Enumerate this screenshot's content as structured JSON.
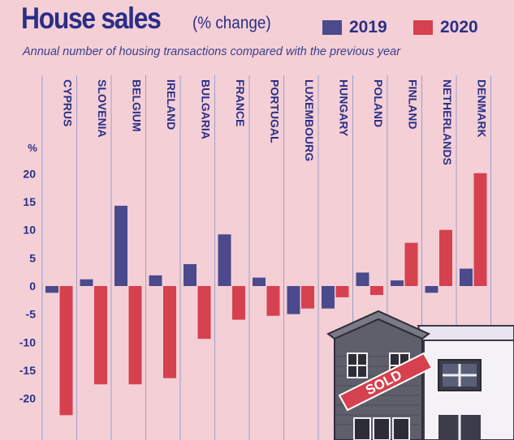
{
  "chart_data": {
    "type": "bar",
    "title": "House sales",
    "title_suffix": "(% change)",
    "subtitle": "Annual number of housing transactions compared with the previous year",
    "ylabel": "%",
    "ylim": [
      -23,
      20
    ],
    "yticks": [
      20,
      15,
      10,
      5,
      0,
      -5,
      -10,
      -15,
      -20
    ],
    "categories": [
      "CYPRUS",
      "SLOVENIA",
      "BELGIUM",
      "IRELAND",
      "BULGARIA",
      "FRANCE",
      "PORTUGAL",
      "LUXEMBOURG",
      "HUNGARY",
      "POLAND",
      "FINLAND",
      "NETHERLANDS",
      "DENMARK"
    ],
    "series": [
      {
        "name": "2019",
        "color": "#4a4a8c",
        "values": [
          -1.2,
          1.2,
          14.3,
          1.9,
          3.9,
          9.2,
          1.5,
          -5.0,
          -4.0,
          2.4,
          1.0,
          -1.2,
          3.1
        ]
      },
      {
        "name": "2020",
        "color": "#d6414f",
        "values": [
          -23.0,
          -17.5,
          -17.5,
          -16.4,
          -9.4,
          -6.0,
          -5.3,
          -4.0,
          -2.0,
          -1.6,
          7.7,
          10.0,
          20.1
        ]
      }
    ],
    "grid": "vertical"
  },
  "illustration": {
    "sign_text": "SOLD"
  },
  "colors": {
    "background": "#f4cfd6",
    "title": "#2a2f86",
    "grid": "#9aa0c8",
    "axis_text": "#2a2f86"
  }
}
